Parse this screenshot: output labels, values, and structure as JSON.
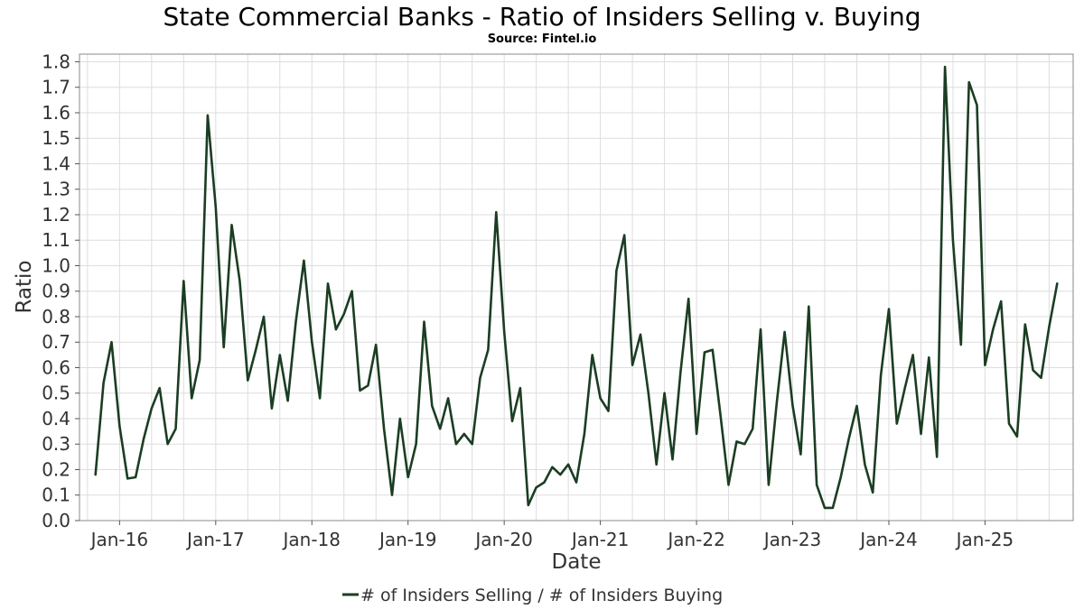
{
  "chart_data": {
    "type": "line",
    "title": "State Commercial Banks - Ratio of Insiders Selling v. Buying",
    "subtitle": "Source: Fintel.io",
    "xlabel": "Date",
    "ylabel": "Ratio",
    "ylim": [
      0,
      1.83
    ],
    "yticks": [
      "0.0",
      "0.1",
      "0.2",
      "0.3",
      "0.4",
      "0.5",
      "0.6",
      "0.7",
      "0.8",
      "0.9",
      "1.0",
      "1.1",
      "1.2",
      "1.3",
      "1.4",
      "1.5",
      "1.6",
      "1.7",
      "1.8"
    ],
    "xticks": [
      "Jan-16",
      "Jan-17",
      "Jan-18",
      "Jan-19",
      "Jan-20",
      "Jan-21",
      "Jan-22",
      "Jan-23",
      "Jan-24",
      "Jan-25"
    ],
    "xlim": [
      "2015-08",
      "2025-12"
    ],
    "grid": true,
    "legend_position": "bottom-center",
    "series_color": "#1b3d22",
    "series": [
      {
        "name": "# of Insiders Selling / # of Insiders Buying",
        "x": [
          "2015-10",
          "2015-11",
          "2015-12",
          "2016-01",
          "2016-02",
          "2016-03",
          "2016-04",
          "2016-05",
          "2016-06",
          "2016-07",
          "2016-08",
          "2016-09",
          "2016-10",
          "2016-11",
          "2016-12",
          "2017-01",
          "2017-02",
          "2017-03",
          "2017-04",
          "2017-05",
          "2017-06",
          "2017-07",
          "2017-08",
          "2017-09",
          "2017-10",
          "2017-11",
          "2017-12",
          "2018-01",
          "2018-02",
          "2018-03",
          "2018-04",
          "2018-05",
          "2018-06",
          "2018-07",
          "2018-08",
          "2018-09",
          "2018-10",
          "2018-11",
          "2018-12",
          "2019-01",
          "2019-02",
          "2019-03",
          "2019-04",
          "2019-05",
          "2019-06",
          "2019-07",
          "2019-08",
          "2019-09",
          "2019-10",
          "2019-11",
          "2019-12",
          "2020-01",
          "2020-02",
          "2020-03",
          "2020-04",
          "2020-05",
          "2020-06",
          "2020-07",
          "2020-08",
          "2020-09",
          "2020-10",
          "2020-11",
          "2020-12",
          "2021-01",
          "2021-02",
          "2021-03",
          "2021-04",
          "2021-05",
          "2021-06",
          "2021-07",
          "2021-08",
          "2021-09",
          "2021-10",
          "2021-11",
          "2021-12",
          "2022-01",
          "2022-02",
          "2022-03",
          "2022-04",
          "2022-05",
          "2022-06",
          "2022-07",
          "2022-08",
          "2022-09",
          "2022-10",
          "2022-11",
          "2022-12",
          "2023-01",
          "2023-02",
          "2023-03",
          "2023-04",
          "2023-05",
          "2023-06",
          "2023-07",
          "2023-08",
          "2023-09",
          "2023-10",
          "2023-11",
          "2023-12",
          "2024-01",
          "2024-02",
          "2024-03",
          "2024-04",
          "2024-05",
          "2024-06",
          "2024-07",
          "2024-08",
          "2024-09",
          "2024-10",
          "2024-11",
          "2024-12",
          "2025-01",
          "2025-02",
          "2025-03",
          "2025-04",
          "2025-05",
          "2025-06",
          "2025-07",
          "2025-08",
          "2025-09",
          "2025-10"
        ],
        "values": [
          0.18,
          0.54,
          0.7,
          0.37,
          0.165,
          0.17,
          0.32,
          0.44,
          0.52,
          0.3,
          0.36,
          0.94,
          0.48,
          0.63,
          1.59,
          1.23,
          0.68,
          1.16,
          0.94,
          0.55,
          0.67,
          0.8,
          0.44,
          0.65,
          0.47,
          0.78,
          1.02,
          0.7,
          0.48,
          0.93,
          0.75,
          0.81,
          0.9,
          0.51,
          0.53,
          0.69,
          0.36,
          0.1,
          0.4,
          0.17,
          0.3,
          0.78,
          0.45,
          0.36,
          0.48,
          0.3,
          0.34,
          0.3,
          0.56,
          0.67,
          1.21,
          0.74,
          0.39,
          0.52,
          0.06,
          0.13,
          0.15,
          0.21,
          0.18,
          0.22,
          0.15,
          0.34,
          0.65,
          0.48,
          0.43,
          0.98,
          1.12,
          0.61,
          0.73,
          0.5,
          0.22,
          0.5,
          0.24,
          0.58,
          0.87,
          0.34,
          0.66,
          0.67,
          0.41,
          0.14,
          0.31,
          0.3,
          0.36,
          0.75,
          0.14,
          0.46,
          0.74,
          0.45,
          0.26,
          0.84,
          0.14,
          0.05,
          0.05,
          0.17,
          0.32,
          0.45,
          0.22,
          0.11,
          0.57,
          0.83,
          0.38,
          0.52,
          0.65,
          0.34,
          0.64,
          0.25,
          1.78,
          1.1,
          0.69,
          1.72,
          1.63,
          0.61,
          0.75,
          0.86,
          0.38,
          0.33,
          0.77,
          0.59,
          0.56,
          0.76,
          0.93
        ]
      }
    ]
  }
}
